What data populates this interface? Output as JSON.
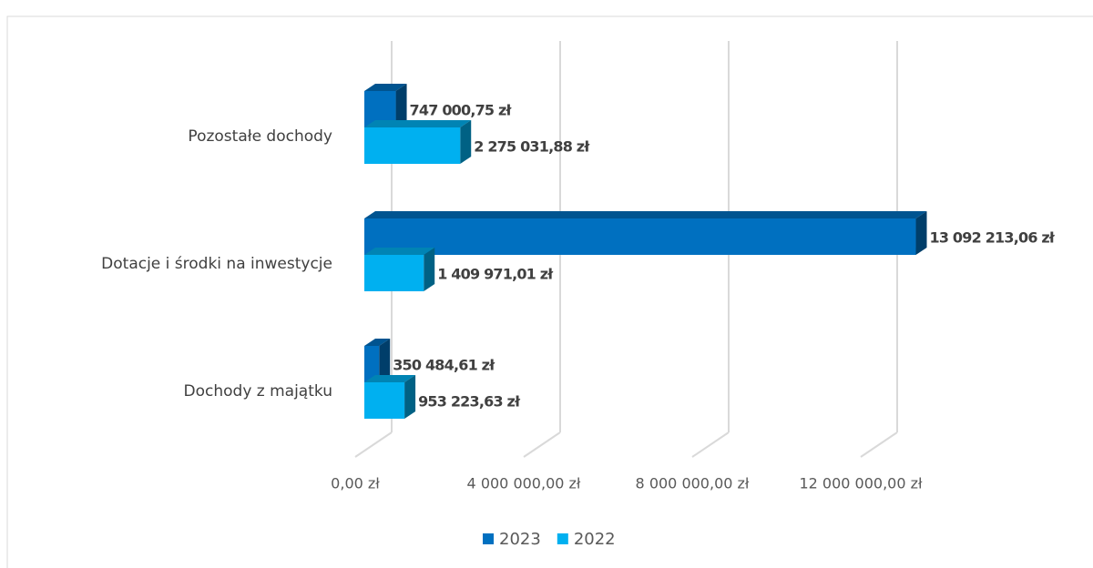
{
  "chart_data": {
    "type": "bar3d-horizontal",
    "categories": [
      "Dochody z majątku",
      "Dotacje i środki na inwestycje",
      "Pozostałe dochody"
    ],
    "series": [
      {
        "name": "2023",
        "color": "#0070c0",
        "values": [
          350484.61,
          13092213.06,
          747000.75
        ],
        "value_labels": [
          "350 484,61 zł",
          "13 092 213,06 zł",
          "747 000,75 zł"
        ]
      },
      {
        "name": "2022",
        "color": "#00b0f0",
        "values": [
          953223.63,
          1409971.01,
          2275031.88
        ],
        "value_labels": [
          "953 223,63 zł",
          "1 409 971,01 zł",
          "2 275 031,88 zł"
        ]
      }
    ],
    "xlim": [
      0,
      16000000
    ],
    "xticks": [
      {
        "value": 0,
        "label": "0,00 zł"
      },
      {
        "value": 4000000,
        "label": "4 000 000,00 zł"
      },
      {
        "value": 8000000,
        "label": "8 000 000,00 zł"
      },
      {
        "value": 12000000,
        "label": "12 000 000,00 zł"
      }
    ],
    "grid": true,
    "legend": "bottom"
  }
}
